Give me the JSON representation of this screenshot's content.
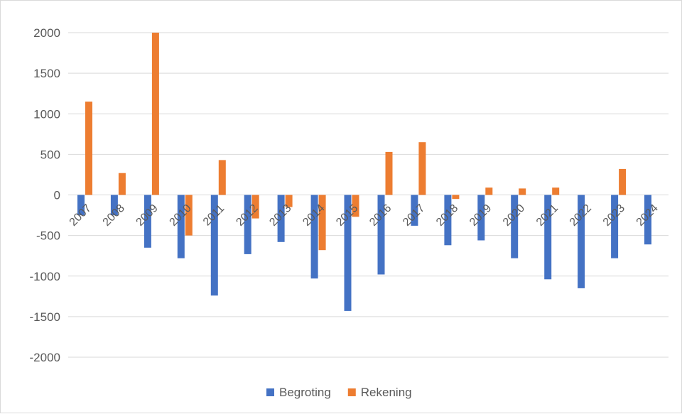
{
  "chart_data": {
    "type": "bar",
    "categories": [
      "2007",
      "2008",
      "2009",
      "2010",
      "2011",
      "2012",
      "2013",
      "2014",
      "2015",
      "2016",
      "2017",
      "2018",
      "2019",
      "2020",
      "2021",
      "2022",
      "2023",
      "2024"
    ],
    "series": [
      {
        "name": "Begroting",
        "color": "#4472c4",
        "values": [
          -250,
          -250,
          -650,
          -780,
          -1240,
          -730,
          -580,
          -1030,
          -1430,
          -980,
          -380,
          -620,
          -560,
          -780,
          -1040,
          -1150,
          -780,
          -610
        ]
      },
      {
        "name": "Rekening",
        "color": "#ed7d31",
        "values": [
          1150,
          270,
          2000,
          -500,
          430,
          -290,
          -150,
          -680,
          -270,
          530,
          650,
          -50,
          90,
          80,
          90,
          0,
          320,
          0
        ]
      }
    ],
    "ylim": [
      -2000,
      2000
    ],
    "yticks": [
      2000,
      1500,
      1000,
      500,
      0,
      -500,
      -1000,
      -1500,
      -2000
    ],
    "grid": true,
    "legend": "bottom"
  }
}
